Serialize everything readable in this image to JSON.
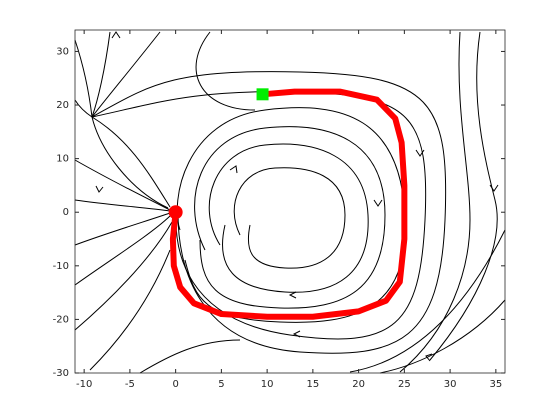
{
  "chart_data": {
    "type": "line",
    "x": [
      0,
      -0.3,
      -0.2,
      0.5,
      2,
      5,
      10,
      15,
      20,
      23,
      24.5,
      25,
      25,
      24.7,
      24,
      22,
      18,
      13,
      9.5
    ],
    "values": [
      0,
      -5,
      -10,
      -14,
      -17,
      -19,
      -19.5,
      -19.5,
      -18.5,
      -16.5,
      -13,
      -5,
      5,
      13,
      17.5,
      21,
      22.5,
      22.5,
      22
    ],
    "color": "#ff0000",
    "start_color": "#ff0000",
    "end_color": "#00ee00",
    "xlim": [
      -11,
      36
    ],
    "xticks": [
      -10,
      -5,
      0,
      5,
      10,
      15,
      20,
      25,
      30,
      35
    ],
    "ylim": [
      -30,
      34
    ],
    "yticks": [
      -30,
      -20,
      -10,
      0,
      10,
      20,
      30
    ]
  }
}
